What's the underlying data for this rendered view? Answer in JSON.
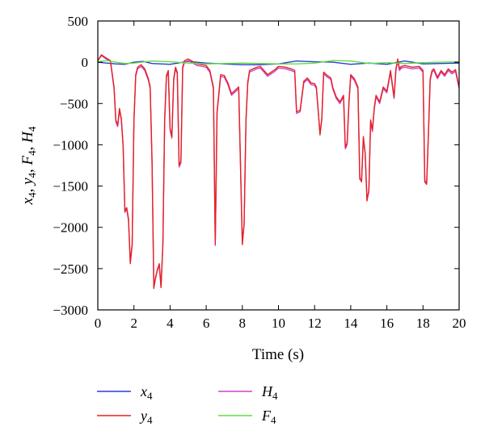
{
  "chart_data": {
    "type": "line",
    "xlabel": "Time (s)",
    "ylabel": "x4, y4, F4, H4",
    "xlim": [
      0,
      20
    ],
    "ylim": [
      -3000,
      500
    ],
    "xticks": [
      0,
      2,
      4,
      6,
      8,
      10,
      12,
      14,
      16,
      18,
      20
    ],
    "yticks": [
      500,
      0,
      -500,
      -1000,
      -1500,
      -2000,
      -2500,
      -3000
    ],
    "ytick_labels": [
      "500",
      "0",
      "−500",
      "−1000",
      "−1500",
      "−2000",
      "−2500",
      "−3000"
    ],
    "grid": false,
    "legend_position": "below",
    "series": [
      {
        "name": "x4",
        "base": "x",
        "sub": "4",
        "color": "#2a3adf",
        "x": [
          0,
          0.5,
          1,
          1.5,
          2,
          2.5,
          3,
          4,
          5,
          6,
          7,
          8,
          9,
          10,
          11,
          12,
          13,
          14,
          15,
          16,
          17,
          18,
          19,
          20
        ],
        "y": [
          0,
          -10,
          -20,
          -25,
          0,
          10,
          -15,
          -25,
          10,
          -10,
          -20,
          -30,
          -30,
          -20,
          15,
          5,
          0,
          -25,
          -10,
          -25,
          15,
          -20,
          -15,
          -10
        ]
      },
      {
        "name": "y4",
        "base": "y",
        "sub": "4",
        "color": "#e52222",
        "x": [
          0,
          0.2,
          0.4,
          0.7,
          0.9,
          1.0,
          1.1,
          1.2,
          1.3,
          1.4,
          1.5,
          1.6,
          1.7,
          1.8,
          1.9,
          2.0,
          2.1,
          2.2,
          2.4,
          2.6,
          2.8,
          2.9,
          3.0,
          3.1,
          3.2,
          3.3,
          3.4,
          3.5,
          3.6,
          3.7,
          3.8,
          3.9,
          4.0,
          4.1,
          4.2,
          4.3,
          4.4,
          4.5,
          4.6,
          4.7,
          4.8,
          5.0,
          5.5,
          6.0,
          6.2,
          6.4,
          6.5,
          6.6,
          6.8,
          7.0,
          7.2,
          7.4,
          7.6,
          7.8,
          8.0,
          8.1,
          8.2,
          8.3,
          8.4,
          8.6,
          8.8,
          9.0,
          9.4,
          9.8,
          10.0,
          10.4,
          10.7,
          10.9,
          11.0,
          11.2,
          11.4,
          11.6,
          11.8,
          12.0,
          12.1,
          12.3,
          12.4,
          12.5,
          12.7,
          12.9,
          13.0,
          13.2,
          13.4,
          13.6,
          13.7,
          13.8,
          13.9,
          14.0,
          14.2,
          14.4,
          14.5,
          14.6,
          14.7,
          14.8,
          14.9,
          15.0,
          15.1,
          15.2,
          15.3,
          15.4,
          15.6,
          15.8,
          16.0,
          16.2,
          16.4,
          16.5,
          16.6,
          16.7,
          16.8,
          17.0,
          17.4,
          17.8,
          18.0,
          18.1,
          18.2,
          18.3,
          18.4,
          18.5,
          18.6,
          18.8,
          19.0,
          19.2,
          19.4,
          19.6,
          19.8,
          20.0
        ],
        "y": [
          20,
          90,
          60,
          20,
          -300,
          -700,
          -760,
          -560,
          -680,
          -1000,
          -1800,
          -1760,
          -1900,
          -2440,
          -2200,
          -700,
          -150,
          -60,
          -30,
          -80,
          -200,
          -300,
          -1200,
          -2740,
          -2600,
          -2520,
          -2440,
          -2730,
          -2200,
          -700,
          -160,
          -100,
          -800,
          -900,
          -200,
          -60,
          -120,
          -1250,
          -1200,
          -60,
          20,
          40,
          -20,
          -40,
          -100,
          -300,
          -2200,
          -600,
          -150,
          -160,
          -250,
          -380,
          -340,
          -300,
          -2210,
          -1950,
          -700,
          -240,
          -100,
          -80,
          -60,
          -50,
          -150,
          -90,
          -50,
          -60,
          -80,
          -100,
          -600,
          -580,
          -230,
          -190,
          -250,
          -260,
          -300,
          -880,
          -680,
          -120,
          -160,
          -190,
          -300,
          -420,
          -480,
          -400,
          -1030,
          -980,
          -480,
          -150,
          -200,
          -300,
          -1400,
          -1450,
          -900,
          -1100,
          -1680,
          -1550,
          -700,
          -820,
          -550,
          -400,
          -480,
          -300,
          -350,
          -100,
          -420,
          -80,
          40,
          -80,
          -50,
          -40,
          -60,
          -50,
          -100,
          -1450,
          -1480,
          -860,
          -200,
          -100,
          -80,
          -180,
          -100,
          -150,
          -80,
          -120,
          -90,
          -300
        ]
      },
      {
        "name": "H4",
        "base": "H",
        "sub": "4",
        "color": "#cc44cc",
        "x": [
          0,
          0.2,
          0.4,
          0.7,
          0.9,
          1.0,
          1.1,
          1.2,
          1.3,
          1.4,
          1.5,
          1.6,
          1.7,
          1.8,
          1.9,
          2.0,
          2.1,
          2.2,
          2.4,
          2.6,
          2.8,
          2.9,
          3.0,
          3.1,
          3.2,
          3.3,
          3.4,
          3.5,
          3.6,
          3.7,
          3.8,
          3.9,
          4.0,
          4.1,
          4.2,
          4.3,
          4.4,
          4.5,
          4.6,
          4.7,
          4.8,
          5.0,
          5.5,
          6.0,
          6.2,
          6.4,
          6.5,
          6.6,
          6.8,
          7.0,
          7.2,
          7.4,
          7.6,
          7.8,
          8.0,
          8.1,
          8.2,
          8.3,
          8.4,
          8.6,
          8.8,
          9.0,
          9.4,
          9.8,
          10.0,
          10.4,
          10.7,
          10.9,
          11.0,
          11.2,
          11.4,
          11.6,
          11.8,
          12.0,
          12.1,
          12.3,
          12.4,
          12.5,
          12.7,
          12.9,
          13.0,
          13.2,
          13.4,
          13.6,
          13.7,
          13.8,
          13.9,
          14.0,
          14.2,
          14.4,
          14.5,
          14.6,
          14.7,
          14.8,
          14.9,
          15.0,
          15.1,
          15.2,
          15.3,
          15.4,
          15.6,
          15.8,
          16.0,
          16.2,
          16.4,
          16.5,
          16.6,
          16.7,
          16.8,
          17.0,
          17.4,
          17.8,
          18.0,
          18.1,
          18.2,
          18.3,
          18.4,
          18.5,
          18.6,
          18.8,
          19.0,
          19.2,
          19.4,
          19.6,
          19.8,
          20.0
        ],
        "y": [
          20,
          80,
          50,
          10,
          -320,
          -720,
          -780,
          -580,
          -700,
          -1020,
          -1820,
          -1780,
          -1920,
          -2420,
          -2220,
          -720,
          -170,
          -80,
          -50,
          -100,
          -220,
          -320,
          -1220,
          -2720,
          -2620,
          -2500,
          -2460,
          -2710,
          -2220,
          -720,
          -180,
          -120,
          -820,
          -920,
          -220,
          -80,
          -140,
          -1270,
          -1220,
          -80,
          0,
          20,
          -40,
          -60,
          -120,
          -320,
          -2220,
          -620,
          -170,
          -180,
          -270,
          -400,
          -360,
          -320,
          -2190,
          -1970,
          -720,
          -260,
          -120,
          -100,
          -80,
          -70,
          -170,
          -110,
          -70,
          -80,
          -100,
          -120,
          -620,
          -600,
          -250,
          -210,
          -270,
          -280,
          -320,
          -860,
          -700,
          -140,
          -180,
          -210,
          -320,
          -440,
          -500,
          -420,
          -1050,
          -1000,
          -500,
          -170,
          -220,
          -320,
          -1420,
          -1430,
          -920,
          -1120,
          -1660,
          -1570,
          -720,
          -840,
          -570,
          -420,
          -500,
          -320,
          -370,
          -120,
          -440,
          -100,
          20,
          -100,
          -70,
          -60,
          -80,
          -70,
          -120,
          -1430,
          -1470,
          -880,
          -220,
          -120,
          -100,
          -200,
          -120,
          -170,
          -100,
          -140,
          -110,
          -320
        ]
      },
      {
        "name": "F4",
        "base": "F",
        "sub": "4",
        "color": "#5de03a",
        "x": [
          0,
          0.5,
          1,
          1.5,
          2,
          3,
          4,
          5,
          6,
          7,
          8,
          9,
          10,
          11,
          12,
          13,
          14,
          15,
          16,
          17,
          18,
          19,
          20
        ],
        "y": [
          5,
          20,
          0,
          -15,
          -10,
          15,
          5,
          -10,
          -20,
          -15,
          -10,
          -15,
          -20,
          -20,
          -10,
          20,
          15,
          -15,
          -5,
          -15,
          -5,
          0,
          5
        ]
      }
    ]
  }
}
